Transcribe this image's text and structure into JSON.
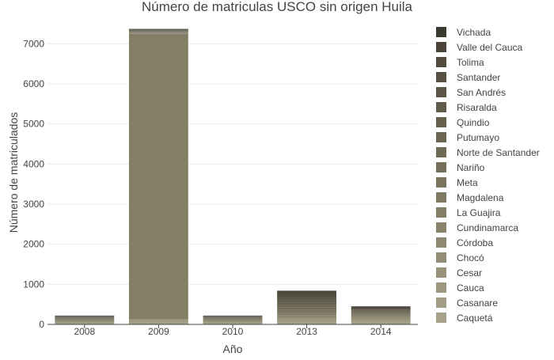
{
  "chart_data": {
    "type": "bar",
    "stacked": true,
    "title": "Número de matriculas USCO sin origen Huila",
    "xlabel": "Año",
    "ylabel": "Número de matriculados",
    "categories": [
      "2008",
      "2009",
      "2010",
      "2013",
      "2014"
    ],
    "ylim": [
      0,
      7500
    ],
    "yticks": [
      "0",
      "1000",
      "2000",
      "3000",
      "4000",
      "5000",
      "6000",
      "7000"
    ],
    "grid": true,
    "legend_position": "right",
    "series": [
      {
        "name": "Caquetá",
        "color": "#a6a18a",
        "values": [
          30,
          40,
          30,
          40,
          40
        ]
      },
      {
        "name": "Casanare",
        "color": "#a19c84",
        "values": [
          10,
          30,
          10,
          30,
          30
        ]
      },
      {
        "name": "Cauca",
        "color": "#9c977e",
        "values": [
          10,
          20,
          10,
          30,
          20
        ]
      },
      {
        "name": "Cesar",
        "color": "#979279",
        "values": [
          10,
          10,
          10,
          20,
          20
        ]
      },
      {
        "name": "Chocó",
        "color": "#928d74",
        "values": [
          10,
          10,
          10,
          20,
          20
        ]
      },
      {
        "name": "Córdoba",
        "color": "#8d886f",
        "values": [
          10,
          10,
          10,
          20,
          20
        ]
      },
      {
        "name": "Cundinamarca",
        "color": "#88836a",
        "values": [
          10,
          10,
          10,
          40,
          20
        ]
      },
      {
        "name": "La Guajira",
        "color": "#837e66",
        "values": [
          10,
          7120,
          10,
          30,
          20
        ]
      },
      {
        "name": "Magdalena",
        "color": "#7e7962",
        "values": [
          10,
          10,
          10,
          40,
          20
        ]
      },
      {
        "name": "Meta",
        "color": "#79745e",
        "values": [
          10,
          10,
          10,
          40,
          20
        ]
      },
      {
        "name": "Nariño",
        "color": "#746f5a",
        "values": [
          10,
          10,
          10,
          50,
          20
        ]
      },
      {
        "name": "Norte de Santander",
        "color": "#6f6a56",
        "values": [
          10,
          10,
          10,
          60,
          20
        ]
      },
      {
        "name": "Putumayo",
        "color": "#6a6552",
        "values": [
          10,
          10,
          10,
          60,
          20
        ]
      },
      {
        "name": "Quindio",
        "color": "#65604e",
        "values": [
          10,
          10,
          10,
          60,
          20
        ]
      },
      {
        "name": "Risaralda",
        "color": "#605b4a",
        "values": [
          10,
          10,
          10,
          60,
          20
        ]
      },
      {
        "name": "San Andrés",
        "color": "#5b5646",
        "values": [
          10,
          10,
          10,
          60,
          20
        ]
      },
      {
        "name": "Santander",
        "color": "#565142",
        "values": [
          10,
          10,
          10,
          60,
          20
        ]
      },
      {
        "name": "Tolima",
        "color": "#514c3e",
        "values": [
          10,
          10,
          10,
          60,
          20
        ]
      },
      {
        "name": "Valle del Cauca",
        "color": "#4a4538",
        "values": [
          10,
          10,
          10,
          40,
          30
        ]
      },
      {
        "name": "Vichada",
        "color": "#3a3a30",
        "values": [
          10,
          10,
          10,
          20,
          30
        ]
      }
    ]
  }
}
